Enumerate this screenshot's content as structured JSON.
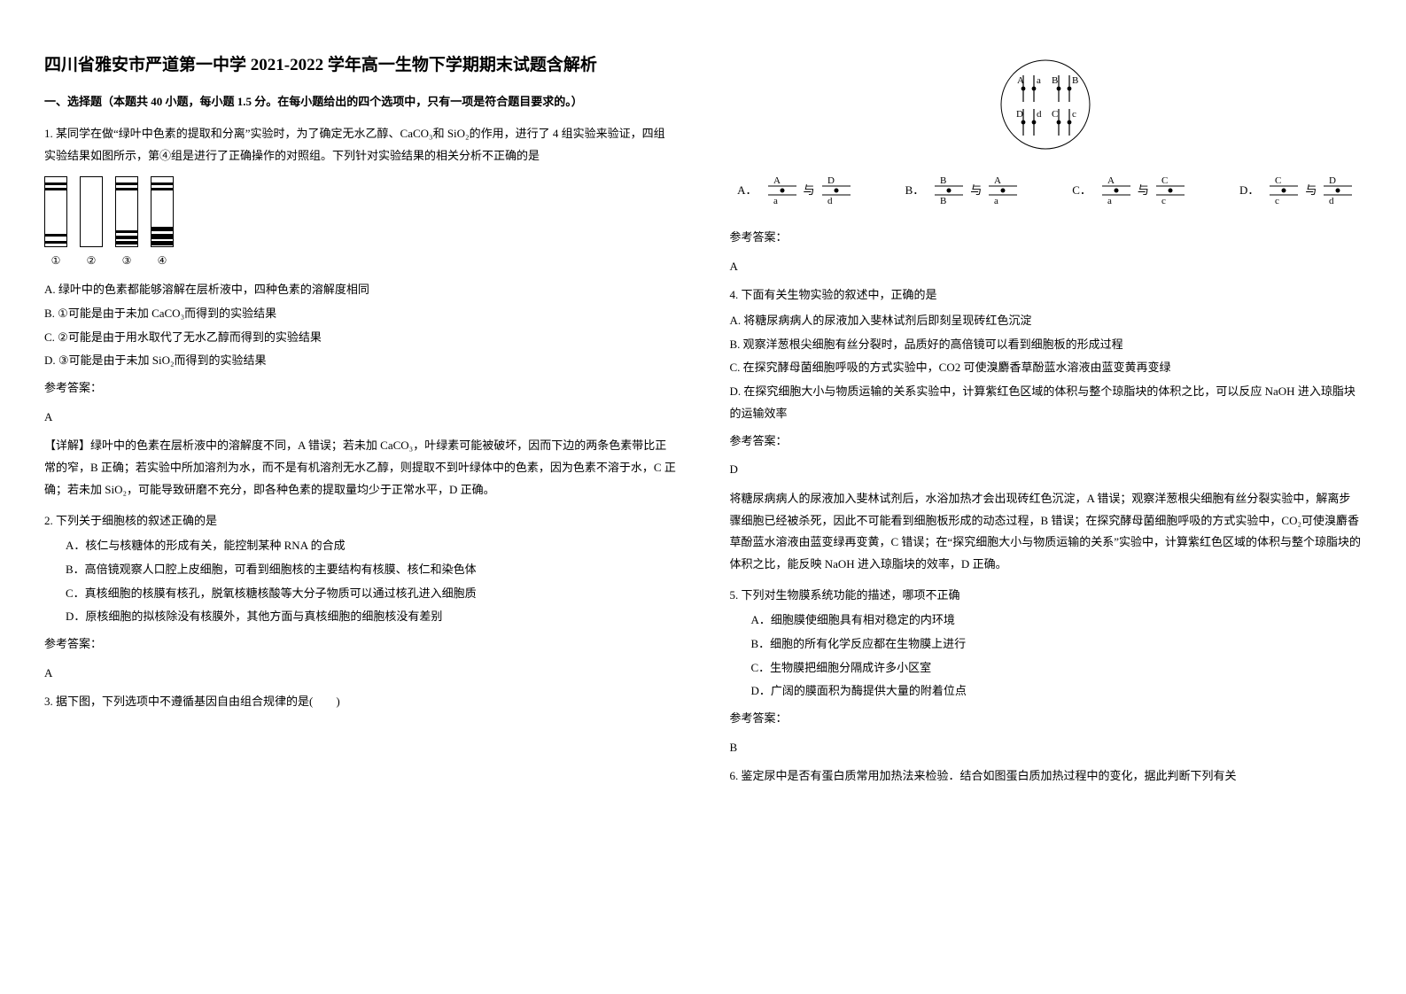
{
  "title": "四川省雅安市严道第一中学 2021-2022 学年高一生物下学期期末试题含解析",
  "section_header": "一、选择题（本题共 40 小题，每小题 1.5 分。在每小题给出的四个选项中，只有一项是符合题目要求的。）",
  "q1": {
    "text": "1. 某同学在做“绿叶中色素的提取和分离”实验时，为了确定无水乙醇、CaCO₃和 SiO₂的作用，进行了 4 组实验来验证，四组实验结果如图所示，第④组是进行了正确操作的对照组。下列针对实验结果的相关分析不正确的是",
    "strips": {
      "labels": [
        "①",
        "②",
        "③",
        "④"
      ],
      "width": 26,
      "height": 80,
      "bands": [
        [
          [
            6,
            3
          ],
          [
            12,
            3
          ],
          [
            64,
            3
          ],
          [
            72,
            3
          ]
        ],
        [],
        [
          [
            6,
            3
          ],
          [
            12,
            3
          ],
          [
            60,
            3
          ],
          [
            66,
            4
          ],
          [
            72,
            4
          ]
        ],
        [
          [
            6,
            3
          ],
          [
            12,
            3
          ],
          [
            56,
            5
          ],
          [
            64,
            6
          ],
          [
            72,
            5
          ]
        ]
      ]
    },
    "opts": {
      "A": "A. 绿叶中的色素都能够溶解在层析液中，四种色素的溶解度相同",
      "B": "B. ①可能是由于未加 CaCO₃而得到的实验结果",
      "C": "C. ②可能是由于用水取代了无水乙醇而得到的实验结果",
      "D": "D. ③可能是由于未加 SiO₂而得到的实验结果"
    },
    "answer_label": "参考答案：",
    "answer": "A",
    "explanation": "【详解】绿叶中的色素在层析液中的溶解度不同，A 错误；若未加 CaCO₃，叶绿素可能被破坏，因而下边的两条色素带比正常的窄，B 正确；若实验中所加溶剂为水，而不是有机溶剂无水乙醇，则提取不到叶绿体中的色素，因为色素不溶于水，C 正确；若未加 SiO₂，可能导致研磨不充分，即各种色素的提取量均少于正常水平，D 正确。"
  },
  "q2": {
    "text": "2. 下列关于细胞核的叙述正确的是",
    "opts": {
      "A": "A．核仁与核糖体的形成有关，能控制某种 RNA 的合成",
      "B": "B．高倍镜观察人口腔上皮细胞，可看到细胞核的主要结构有核膜、核仁和染色体",
      "C": "C．真核细胞的核膜有核孔，脱氧核糖核酸等大分子物质可以通过核孔进入细胞质",
      "D": "D．原核细胞的拟核除没有核膜外，其他方面与真核细胞的细胞核没有差别"
    },
    "answer_label": "参考答案：",
    "answer": "A"
  },
  "q3": {
    "text": "3. 据下图，下列选项中不遵循基因自由组合规律的是(　　)",
    "circle": {
      "labels": [
        "A",
        "a",
        "B",
        "B",
        "D",
        "d",
        "C",
        "c"
      ],
      "pair_letters": {
        "A": [
          "A",
          "a",
          "D",
          "d"
        ],
        "B": [
          "B",
          "B",
          "A",
          "a"
        ],
        "C": [
          "A",
          "a",
          "C",
          "c"
        ],
        "D": [
          "C",
          "c",
          "D",
          "d"
        ]
      },
      "conj": "与"
    },
    "answer_label": "参考答案：",
    "answer": "A"
  },
  "q4": {
    "text": "4. 下面有关生物实验的叙述中，正确的是",
    "opts": {
      "A": "A. 将糖尿病病人的尿液加入斐林试剂后即刻呈现砖红色沉淀",
      "B": "B. 观察洋葱根尖细胞有丝分裂时，品质好的高倍镜可以看到细胞板的形成过程",
      "C": "C. 在探究酵母菌细胞呼吸的方式实验中，CO2 可使溴麝香草酚蓝水溶液由蓝变黄再变绿",
      "D": "D. 在探究细胞大小与物质运输的关系实验中，计算紫红色区域的体积与整个琼脂块的体积之比，可以反应 NaOH 进入琼脂块的运输效率"
    },
    "answer_label": "参考答案：",
    "answer": "D",
    "explanation": "将糖尿病病人的尿液加入斐林试剂后，水浴加热才会出现砖红色沉淀，A 错误；观察洋葱根尖细胞有丝分裂实验中，解离步骤细胞已经被杀死，因此不可能看到细胞板形成的动态过程，B 错误；在探究酵母菌细胞呼吸的方式实验中，CO₂可使溴麝香草酚蓝水溶液由蓝变绿再变黄，C 错误；在“探究细胞大小与物质运输的关系”实验中，计算紫红色区域的体积与整个琼脂块的体积之比，能反映 NaOH 进入琼脂块的效率，D 正确。"
  },
  "q5": {
    "text": "5. 下列对生物膜系统功能的描述，哪项不正确",
    "opts": {
      "A": "A．细胞膜使细胞具有相对稳定的内环境",
      "B": "B．细胞的所有化学反应都在生物膜上进行",
      "C": "C．生物膜把细胞分隔成许多小区室",
      "D": "D．广阔的膜面积为酶提供大量的附着位点"
    },
    "answer_label": "参考答案：",
    "answer": "B"
  },
  "q6": {
    "text": "6. 鉴定尿中是否有蛋白质常用加热法来检验．结合如图蛋白质加热过程中的变化，据此判断下列有关"
  },
  "colors": {
    "text": "#000000",
    "background": "#ffffff",
    "stroke": "#000000"
  }
}
